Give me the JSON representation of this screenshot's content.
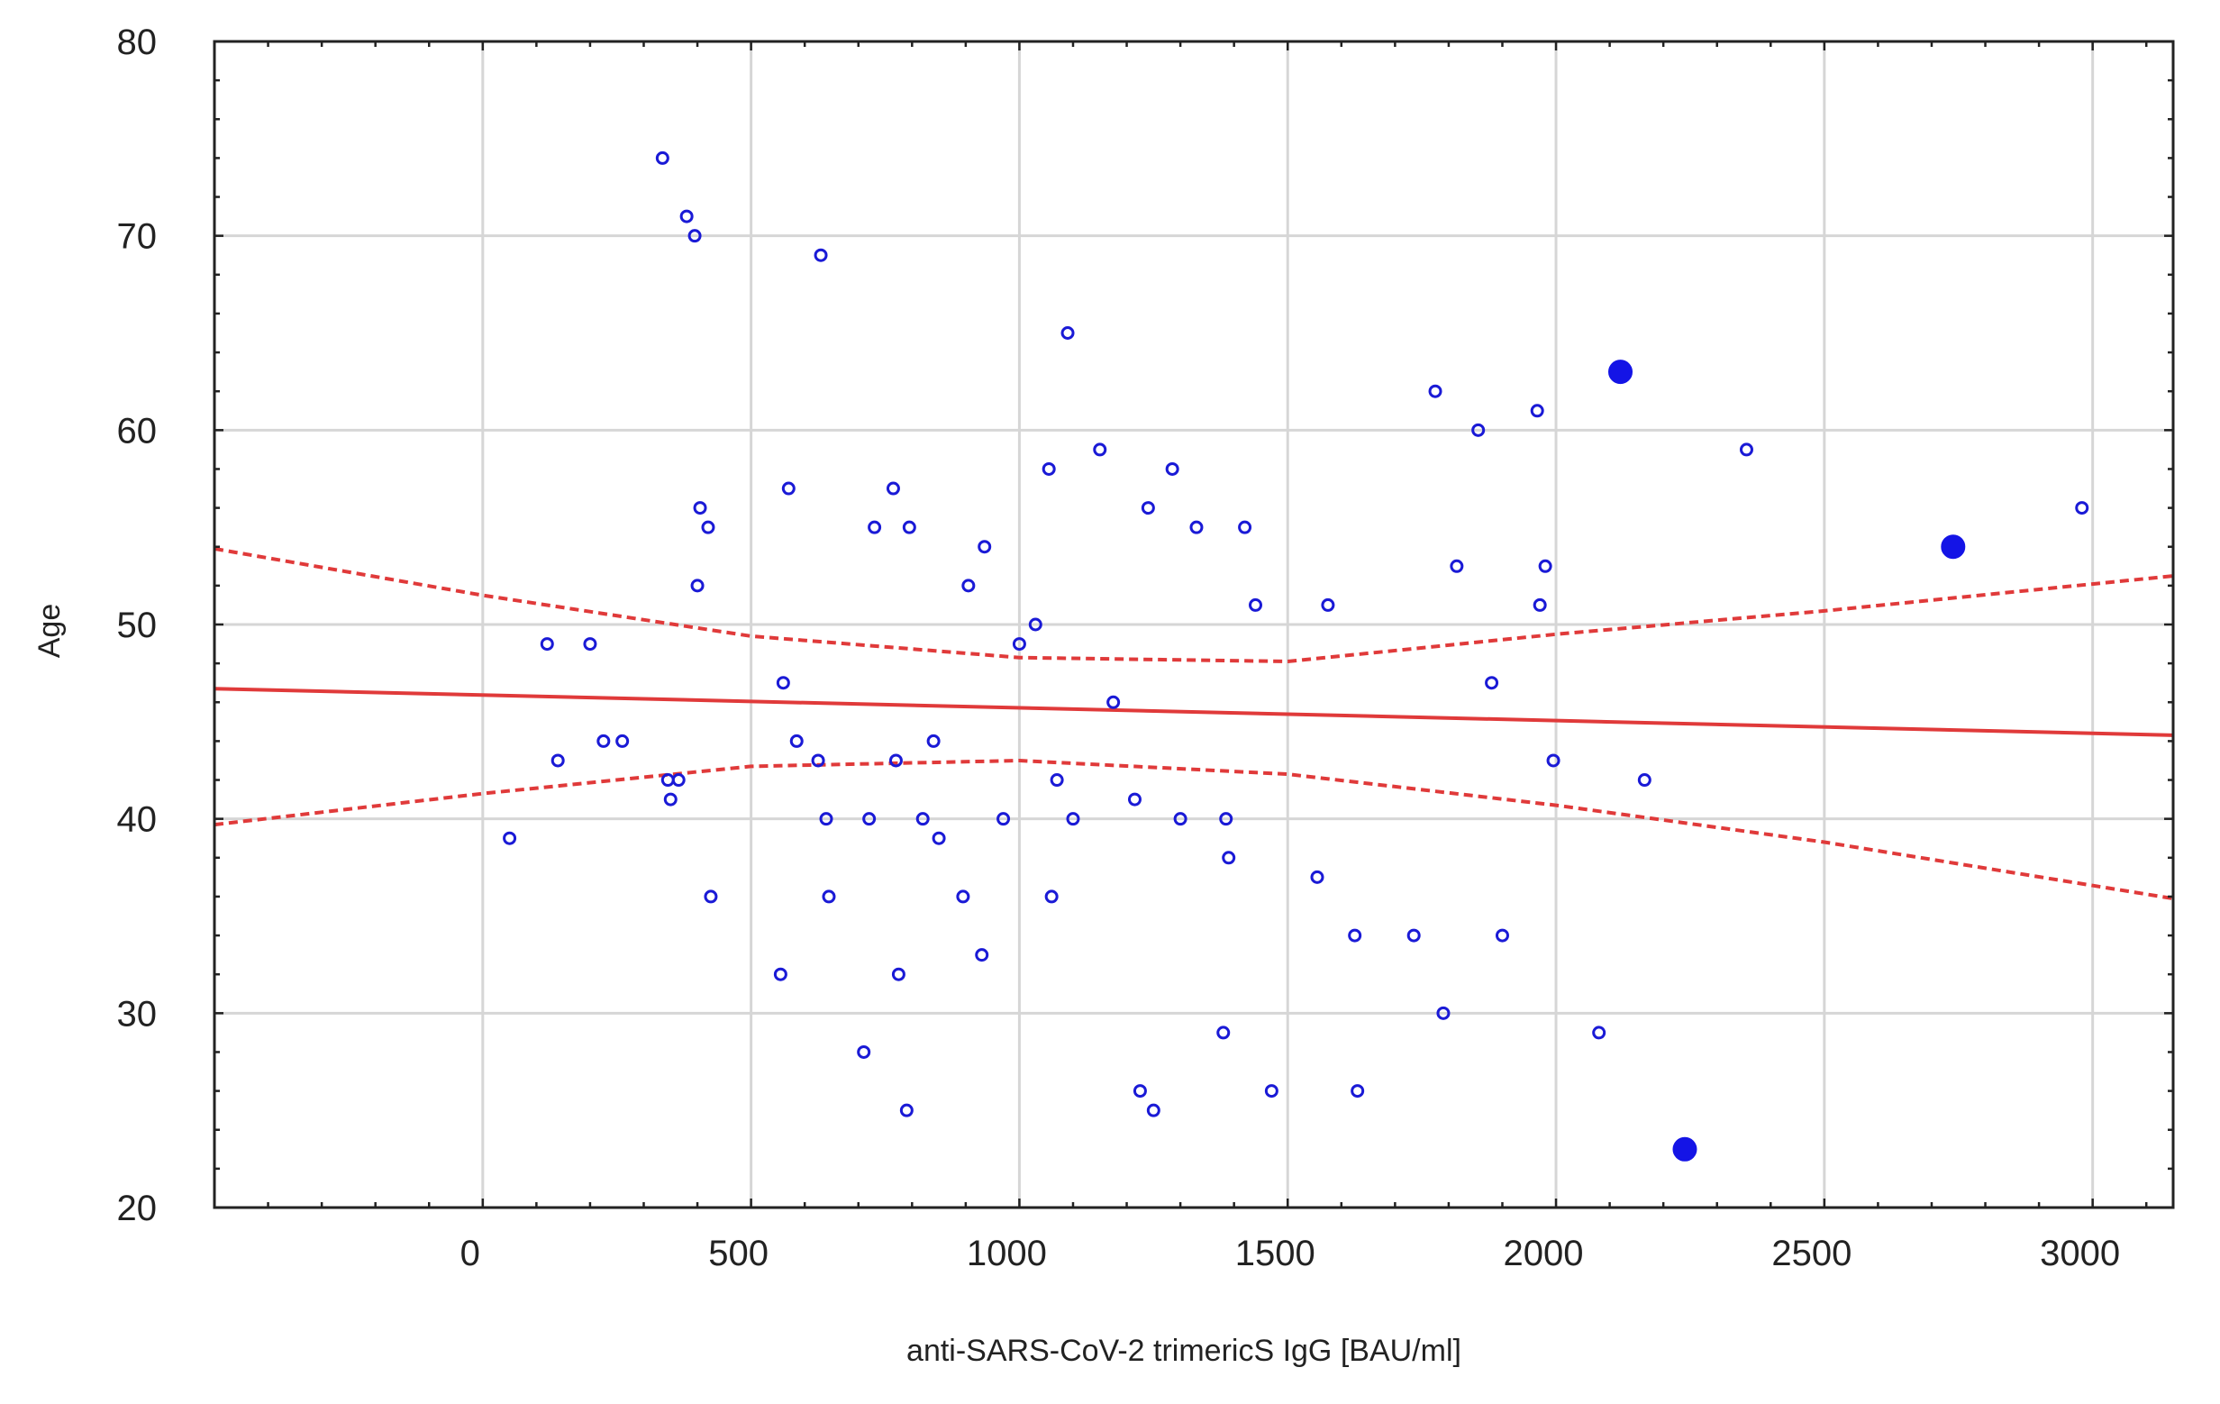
{
  "chart_data": {
    "type": "scatter",
    "title": "",
    "xlabel": "anti-SARS-CoV-2 trimericS IgG [BAU/ml]",
    "ylabel": "Age",
    "xlim": [
      -500,
      3150
    ],
    "ylim": [
      20,
      80
    ],
    "x_ticks": [
      0,
      500,
      1000,
      1500,
      2000,
      2500,
      3000
    ],
    "y_ticks": [
      20,
      30,
      40,
      50,
      60,
      70,
      80
    ],
    "x_tick_labels": [
      "0",
      "500",
      "1000",
      "1500",
      "2000",
      "2500",
      "3000"
    ],
    "y_tick_labels": [
      "20",
      "30",
      "40",
      "50",
      "60",
      "70",
      "80"
    ],
    "grid": true,
    "legend": "none",
    "series": [
      {
        "kind": "points",
        "marker": "open-circle",
        "color": "#1a1ad6",
        "x": [
          50,
          120,
          140,
          200,
          225,
          260,
          335,
          345,
          350,
          365,
          380,
          395,
          400,
          405,
          420,
          425,
          555,
          560,
          570,
          585,
          625,
          630,
          640,
          645,
          710,
          720,
          730,
          765,
          770,
          775,
          790,
          795,
          820,
          840,
          850,
          895,
          905,
          930,
          935,
          970,
          1000,
          1030,
          1055,
          1060,
          1070,
          1090,
          1100,
          1150,
          1175,
          1215,
          1225,
          1240,
          1250,
          1285,
          1300,
          1330,
          1380,
          1385,
          1390,
          1420,
          1440,
          1470,
          1555,
          1575,
          1625,
          1630,
          1735,
          1775,
          1790,
          1815,
          1855,
          1880,
          1900,
          1965,
          1970,
          1980,
          1995,
          2080,
          2165,
          2355,
          2980
        ],
        "y": [
          39,
          49,
          43,
          49,
          44,
          44,
          74,
          42,
          41,
          42,
          71,
          70,
          52,
          56,
          55,
          36,
          32,
          47,
          57,
          44,
          43,
          69,
          40,
          36,
          28,
          40,
          55,
          57,
          43,
          32,
          25,
          55,
          40,
          44,
          39,
          36,
          52,
          33,
          54,
          40,
          49,
          50,
          58,
          36,
          42,
          65,
          40,
          59,
          46,
          41,
          26,
          56,
          25,
          58,
          40,
          55,
          29,
          40,
          38,
          55,
          51,
          26,
          37,
          51,
          34,
          26,
          34,
          62,
          30,
          53,
          60,
          47,
          34,
          61,
          51,
          53,
          43,
          29,
          42,
          59,
          56
        ]
      },
      {
        "kind": "points",
        "marker": "filled-circle",
        "color": "#1414e6",
        "x": [
          2120,
          2240,
          2740
        ],
        "y": [
          63,
          23,
          54
        ]
      },
      {
        "kind": "line",
        "name": "",
        "color": "#e03a3a",
        "style": "solid",
        "x": [
          -500,
          3150
        ],
        "y": [
          46.7,
          44.3
        ]
      },
      {
        "kind": "line",
        "name": "",
        "color": "#e03a3a",
        "style": "dashed",
        "x": [
          -500,
          0,
          500,
          1000,
          1500,
          2000,
          2500,
          3150
        ],
        "y": [
          53.9,
          51.5,
          49.4,
          48.3,
          48.1,
          49.5,
          50.7,
          52.5
        ]
      },
      {
        "kind": "line",
        "name": "",
        "color": "#e03a3a",
        "style": "dashed",
        "x": [
          -500,
          0,
          500,
          1000,
          1500,
          2000,
          2500,
          3150
        ],
        "y": [
          39.7,
          41.3,
          42.7,
          43.0,
          42.3,
          40.7,
          38.8,
          35.9
        ]
      }
    ]
  }
}
